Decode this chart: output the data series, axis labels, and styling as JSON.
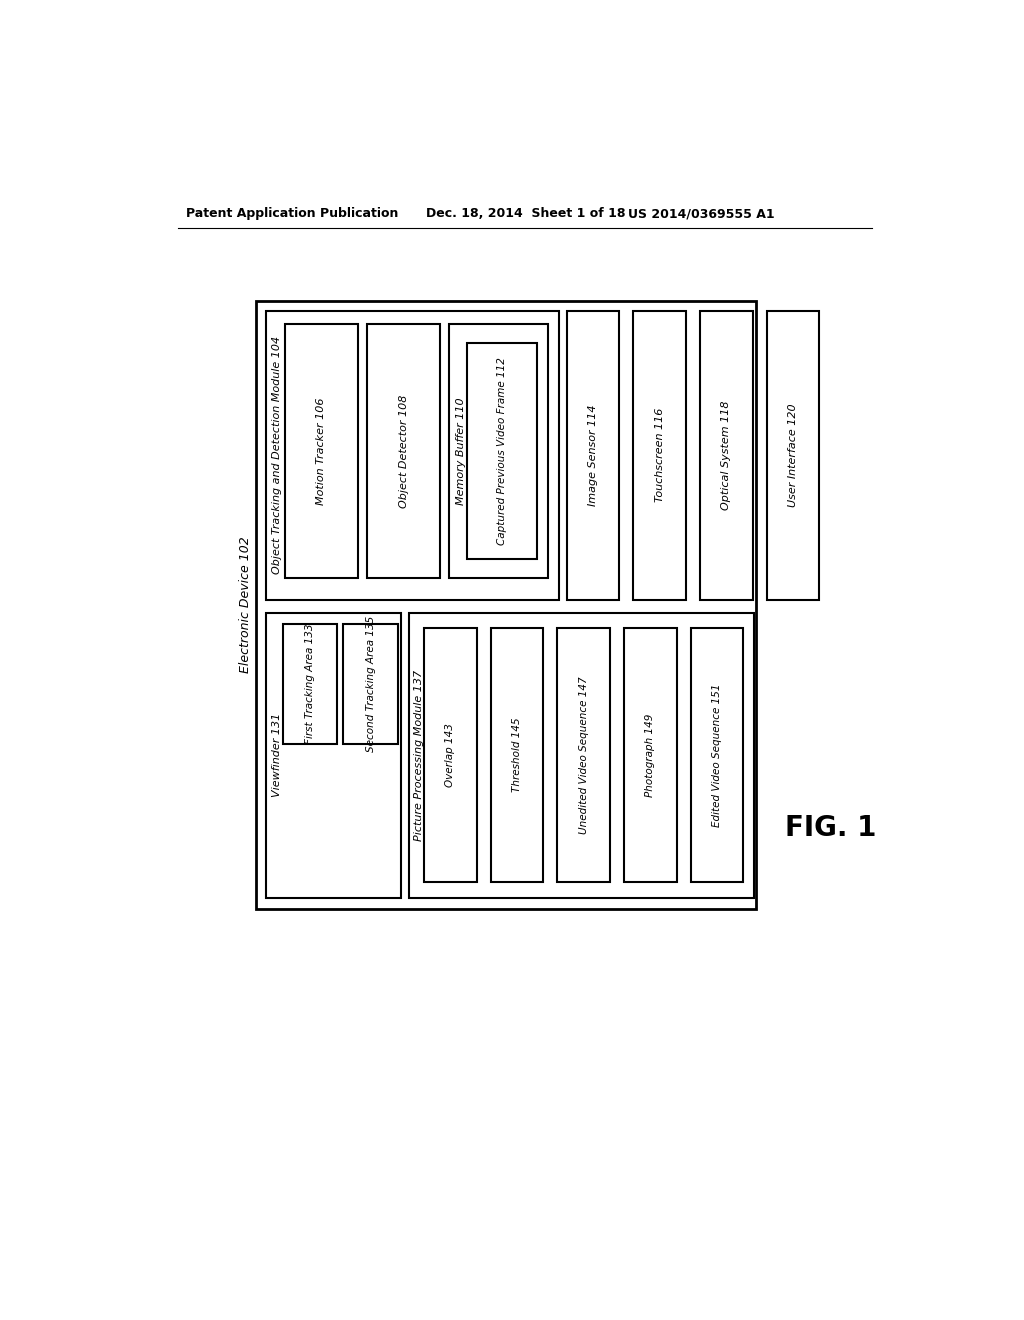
{
  "background_color": "#ffffff",
  "header_left": "Patent Application Publication",
  "header_mid": "Dec. 18, 2014  Sheet 1 of 18",
  "header_right": "US 2014/0369555 A1",
  "fig_label": "FIG. 1",
  "electronic_device_label": "Electronic Device 102",
  "viewfinder_label": "Viewfinder 131",
  "first_tracking": "First Tracking Area 133",
  "second_tracking": "Second Tracking Area 135",
  "picture_processing": "Picture Processing Module 137",
  "overlap": "Overlap 143",
  "threshold": "Threshold 145",
  "unedited": "Unedited Video Sequence 147",
  "photograph": "Photograph 149",
  "edited": "Edited Video Sequence 151",
  "otd_label": "Object Tracking and Detection Module 104",
  "motion_tracker": "Motion Tracker 106",
  "object_detector": "Object Detector 108",
  "memory_buffer": "Memory Buffer 110",
  "captured_frame": "Captured Previous Video Frame 112",
  "image_sensor": "Image Sensor 114",
  "touchscreen": "Touchscreen 116",
  "optical_system": "Optical System 118",
  "user_interface": "User Interface 120"
}
